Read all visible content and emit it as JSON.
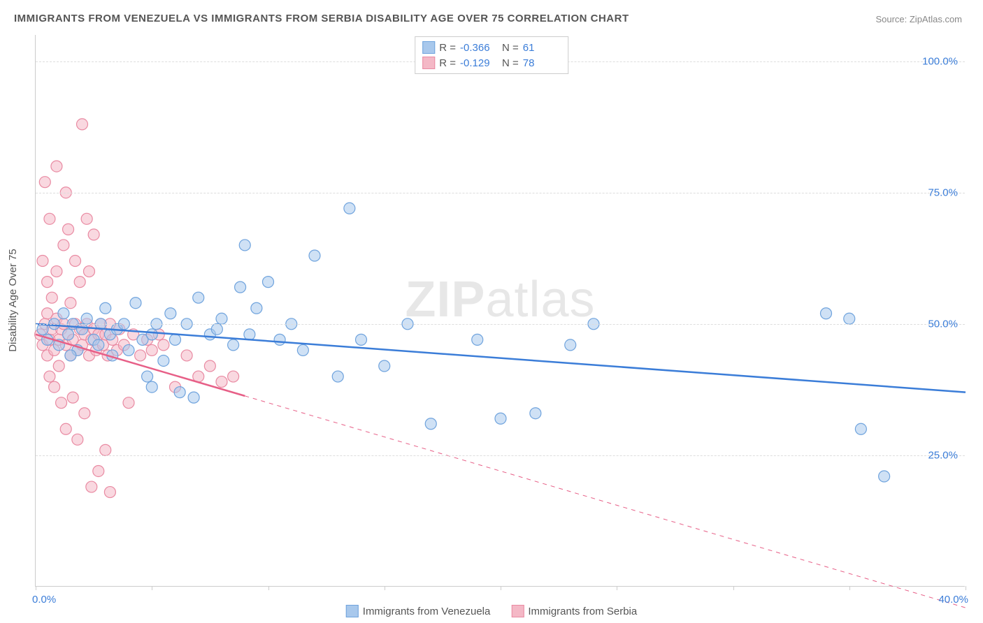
{
  "title": "IMMIGRANTS FROM VENEZUELA VS IMMIGRANTS FROM SERBIA DISABILITY AGE OVER 75 CORRELATION CHART",
  "source_label": "Source: ZipAtlas.com",
  "ylabel": "Disability Age Over 75",
  "watermark": {
    "bold": "ZIP",
    "rest": "atlas"
  },
  "chart": {
    "type": "scatter",
    "xlim": [
      0,
      40
    ],
    "ylim": [
      0,
      105
    ],
    "xtick_positions": [
      0,
      5,
      10,
      15,
      20,
      25,
      30,
      35,
      40
    ],
    "x_min_label": "0.0%",
    "x_max_label": "40.0%",
    "ytick_labels": [
      "25.0%",
      "50.0%",
      "75.0%",
      "100.0%"
    ],
    "ytick_values": [
      25,
      50,
      75,
      100
    ],
    "grid_color": "#dddddd",
    "background_color": "#ffffff",
    "marker_radius": 8,
    "marker_opacity": 0.55,
    "line_width": 2.5
  },
  "series": [
    {
      "name": "Immigrants from Venezuela",
      "color_fill": "#a8c8ec",
      "color_stroke": "#6fa3dd",
      "line_color": "#3b7dd8",
      "R": "-0.366",
      "N": "61",
      "trend": {
        "x1": 0,
        "y1": 50,
        "x2": 40,
        "y2": 37,
        "dashed_from_x": null
      },
      "points": [
        [
          0.3,
          49
        ],
        [
          0.5,
          47
        ],
        [
          0.8,
          50
        ],
        [
          1.0,
          46
        ],
        [
          1.2,
          52
        ],
        [
          1.4,
          48
        ],
        [
          1.6,
          50
        ],
        [
          1.8,
          45
        ],
        [
          2.0,
          49
        ],
        [
          2.2,
          51
        ],
        [
          2.5,
          47
        ],
        [
          2.8,
          50
        ],
        [
          3.0,
          53
        ],
        [
          3.2,
          48
        ],
        [
          3.5,
          49
        ],
        [
          3.8,
          50
        ],
        [
          4.0,
          45
        ],
        [
          4.3,
          54
        ],
        [
          4.6,
          47
        ],
        [
          5.0,
          48
        ],
        [
          5.2,
          50
        ],
        [
          5.5,
          43
        ],
        [
          5.8,
          52
        ],
        [
          6.2,
          37
        ],
        [
          6.5,
          50
        ],
        [
          7.0,
          55
        ],
        [
          7.5,
          48
        ],
        [
          8.0,
          51
        ],
        [
          8.5,
          46
        ],
        [
          9.0,
          65
        ],
        [
          9.2,
          48
        ],
        [
          9.5,
          53
        ],
        [
          10.0,
          58
        ],
        [
          10.5,
          47
        ],
        [
          11.0,
          50
        ],
        [
          11.5,
          45
        ],
        [
          12.0,
          63
        ],
        [
          13.0,
          40
        ],
        [
          13.5,
          72
        ],
        [
          14.0,
          47
        ],
        [
          15.0,
          42
        ],
        [
          16.0,
          50
        ],
        [
          17.0,
          31
        ],
        [
          19.0,
          47
        ],
        [
          20.0,
          32
        ],
        [
          21.5,
          33
        ],
        [
          23.0,
          46
        ],
        [
          24.0,
          50
        ],
        [
          34.0,
          52
        ],
        [
          35.0,
          51
        ],
        [
          35.5,
          30
        ],
        [
          36.5,
          21
        ],
        [
          5.0,
          38
        ],
        [
          6.0,
          47
        ],
        [
          6.8,
          36
        ],
        [
          7.8,
          49
        ],
        [
          8.8,
          57
        ],
        [
          4.8,
          40
        ],
        [
          3.3,
          44
        ],
        [
          2.7,
          46
        ],
        [
          1.5,
          44
        ]
      ]
    },
    {
      "name": "Immigrants from Serbia",
      "color_fill": "#f4b8c6",
      "color_stroke": "#e98aa2",
      "line_color": "#e75f87",
      "R": "-0.129",
      "N": "78",
      "trend": {
        "x1": 0,
        "y1": 48,
        "x2": 40,
        "y2": -4,
        "dashed_from_x": 9
      },
      "points": [
        [
          0.2,
          48
        ],
        [
          0.3,
          46
        ],
        [
          0.4,
          50
        ],
        [
          0.5,
          44
        ],
        [
          0.5,
          52
        ],
        [
          0.6,
          47
        ],
        [
          0.6,
          40
        ],
        [
          0.7,
          49
        ],
        [
          0.7,
          55
        ],
        [
          0.8,
          45
        ],
        [
          0.8,
          38
        ],
        [
          0.9,
          51
        ],
        [
          0.9,
          60
        ],
        [
          1.0,
          47
        ],
        [
          1.0,
          42
        ],
        [
          1.1,
          49
        ],
        [
          1.1,
          35
        ],
        [
          1.2,
          50
        ],
        [
          1.2,
          65
        ],
        [
          1.3,
          46
        ],
        [
          1.3,
          30
        ],
        [
          1.4,
          48
        ],
        [
          1.4,
          68
        ],
        [
          1.5,
          44
        ],
        [
          1.5,
          54
        ],
        [
          1.6,
          47
        ],
        [
          1.6,
          36
        ],
        [
          1.7,
          50
        ],
        [
          1.7,
          62
        ],
        [
          1.8,
          45
        ],
        [
          1.8,
          28
        ],
        [
          1.9,
          49
        ],
        [
          1.9,
          58
        ],
        [
          2.0,
          46
        ],
        [
          2.0,
          88
        ],
        [
          2.1,
          48
        ],
        [
          2.1,
          33
        ],
        [
          2.2,
          50
        ],
        [
          2.2,
          70
        ],
        [
          2.3,
          44
        ],
        [
          2.3,
          60
        ],
        [
          2.4,
          47
        ],
        [
          2.4,
          19
        ],
        [
          2.5,
          49
        ],
        [
          2.5,
          67
        ],
        [
          2.6,
          45
        ],
        [
          2.7,
          48
        ],
        [
          2.8,
          50
        ],
        [
          2.9,
          46
        ],
        [
          3.0,
          26
        ],
        [
          3.0,
          48
        ],
        [
          3.1,
          44
        ],
        [
          3.2,
          50
        ],
        [
          3.3,
          47
        ],
        [
          3.5,
          45
        ],
        [
          3.6,
          49
        ],
        [
          3.8,
          46
        ],
        [
          4.0,
          35
        ],
        [
          4.2,
          48
        ],
        [
          4.5,
          44
        ],
        [
          4.8,
          47
        ],
        [
          5.0,
          45
        ],
        [
          5.3,
          48
        ],
        [
          5.5,
          46
        ],
        [
          6.0,
          38
        ],
        [
          6.5,
          44
        ],
        [
          7.0,
          40
        ],
        [
          7.5,
          42
        ],
        [
          8.0,
          39
        ],
        [
          8.5,
          40
        ],
        [
          0.4,
          77
        ],
        [
          0.6,
          70
        ],
        [
          0.9,
          80
        ],
        [
          1.3,
          75
        ],
        [
          2.7,
          22
        ],
        [
          3.2,
          18
        ],
        [
          0.3,
          62
        ],
        [
          0.5,
          58
        ]
      ]
    }
  ],
  "legend_bottom": [
    {
      "label": "Immigrants from Venezuela",
      "fill": "#a8c8ec",
      "stroke": "#6fa3dd"
    },
    {
      "label": "Immigrants from Serbia",
      "fill": "#f4b8c6",
      "stroke": "#e98aa2"
    }
  ]
}
